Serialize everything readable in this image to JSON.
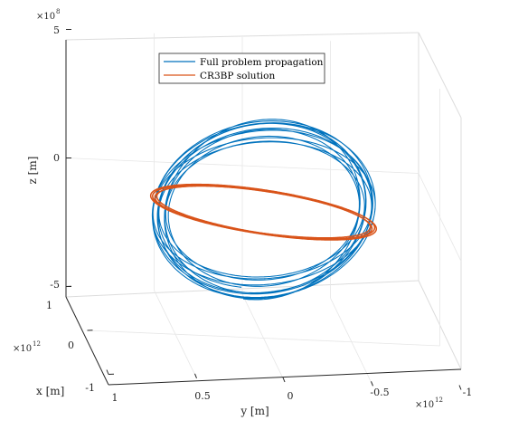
{
  "chart_data": {
    "type": "line",
    "subtype": "3d-orbit",
    "xlabel": "x [m]",
    "ylabel": "y [m]",
    "zlabel": "z [m]",
    "x_multiplier": {
      "base": "×10",
      "exp": "12"
    },
    "y_multiplier": {
      "base": "×10",
      "exp": "12"
    },
    "z_multiplier": {
      "base": "×10",
      "exp": "8"
    },
    "xlim": [
      -1000000000000.0,
      1000000000000.0
    ],
    "ylim": [
      -1000000000000.0,
      1000000000000.0
    ],
    "zlim": [
      -500000000.0,
      500000000.0
    ],
    "x_ticks": [
      "-1",
      "0",
      "1"
    ],
    "y_ticks": [
      "1",
      "0.5",
      "0",
      "-0.5",
      "-1"
    ],
    "z_ticks": [
      "-5",
      "0",
      "5"
    ],
    "grid": true,
    "legend_position": "top",
    "series": [
      {
        "name": "Full problem propagation",
        "color": "#0072BD",
        "description_values": {
          "radius_approx": 550000000000.0,
          "z_amplitude_approx": 380000000.0,
          "revolutions": 12
        }
      },
      {
        "name": "CR3BP solution",
        "color": "#D95319",
        "description_values": {
          "radius_approx": 560000000000.0,
          "z_amplitude_approx": 30000000.0,
          "revolutions": 4
        }
      }
    ]
  }
}
